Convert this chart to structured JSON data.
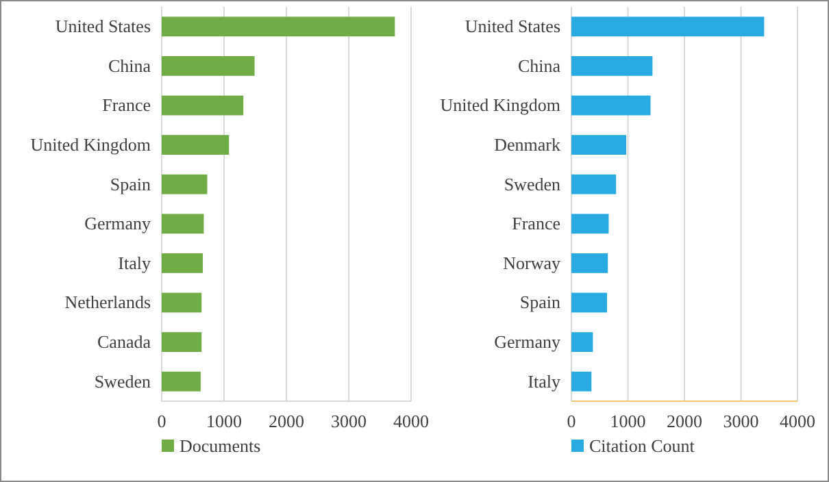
{
  "chart_data": [
    {
      "type": "bar",
      "orientation": "horizontal",
      "categories": [
        "United States",
        "China",
        "France",
        "United Kingdom",
        "Spain",
        "Germany",
        "Italy",
        "Netherlands",
        "Canada",
        "Sweden"
      ],
      "series": [
        {
          "name": "Documents",
          "color": "#70ad47",
          "values": [
            3740,
            1490,
            1310,
            1080,
            730,
            675,
            660,
            640,
            640,
            625
          ]
        }
      ],
      "xlim": [
        0,
        4000
      ],
      "xticks": [
        0,
        1000,
        2000,
        3000,
        4000
      ],
      "grid": "x",
      "legend": "bottom"
    },
    {
      "type": "bar",
      "orientation": "horizontal",
      "categories": [
        "United States",
        "China",
        "United Kingdom",
        "Denmark",
        "Sweden",
        "France",
        "Norway",
        "Spain",
        "Germany",
        "Italy"
      ],
      "series": [
        {
          "name": "Citation Count",
          "color": "#29abe2",
          "values": [
            3410,
            1435,
            1400,
            970,
            790,
            660,
            645,
            630,
            380,
            355
          ]
        }
      ],
      "xlim": [
        0,
        4000
      ],
      "xticks": [
        0,
        1000,
        2000,
        3000,
        4000
      ],
      "grid": "x",
      "legend": "bottom"
    }
  ]
}
